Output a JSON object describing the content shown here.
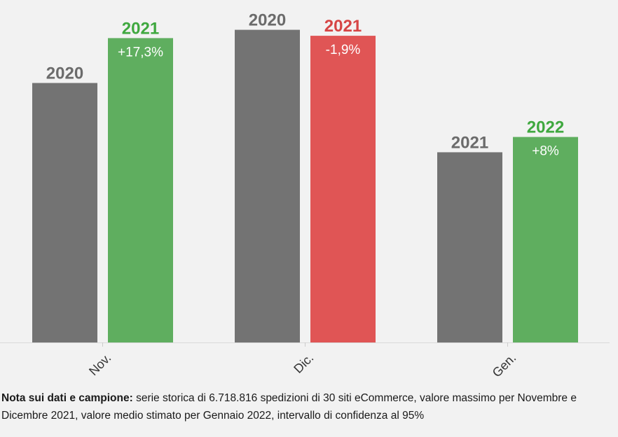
{
  "chart_data": {
    "type": "bar",
    "categories": [
      "Nov.",
      "Dic.",
      "Gen."
    ],
    "groups": [
      {
        "category": "Nov.",
        "bars": [
          {
            "label": "2020",
            "value": 100,
            "role": "base"
          },
          {
            "label": "2021",
            "value": 117.3,
            "role": "current",
            "change": "+17,3%",
            "trend": "up"
          }
        ]
      },
      {
        "category": "Dic.",
        "bars": [
          {
            "label": "2020",
            "value": 120.5,
            "role": "base"
          },
          {
            "label": "2021",
            "value": 118.2,
            "role": "current",
            "change": "-1,9%",
            "trend": "down"
          }
        ]
      },
      {
        "category": "Gen.",
        "bars": [
          {
            "label": "2021",
            "value": 73.3,
            "role": "base"
          },
          {
            "label": "2022",
            "value": 79.2,
            "role": "current",
            "change": "+8%",
            "trend": "up"
          }
        ]
      }
    ],
    "ylim": [
      0,
      122
    ],
    "grid": false,
    "legend": "none",
    "colors": {
      "base": "#737373",
      "up": "#5fae5f",
      "down": "#e05555",
      "base_label": "#6b6b6b",
      "up_label": "#3fa83f",
      "down_label": "#d64545"
    }
  },
  "note": {
    "bold": "Nota sui dati e campione:",
    "text": " serie storica di 6.718.816 spedizioni di 30 siti eCommerce, valore massimo per Novembre e Dicembre 2021, valore medio stimato per Gennaio 2022, intervallo di confidenza al 95%"
  }
}
